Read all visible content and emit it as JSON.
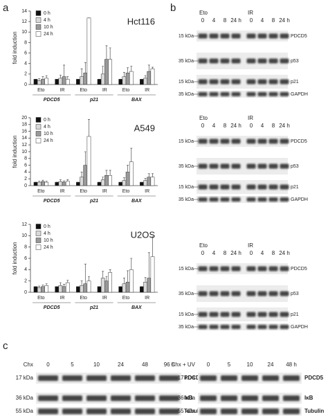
{
  "panel_labels": [
    "a",
    "b",
    "c"
  ],
  "chart_data": [
    {
      "type": "bar",
      "title": "Hct116",
      "y_label": "fold induction",
      "categories": [
        "Eto",
        "IR",
        "Eto",
        "IR",
        "Eto",
        "IR"
      ],
      "groups": [
        "PDCD5",
        "p21",
        "BAX"
      ],
      "ylim": [
        0,
        14
      ],
      "yticks": [
        0,
        2,
        4,
        6,
        8,
        10,
        12,
        14
      ],
      "grid": false,
      "legend": "top-left",
      "series": [
        {
          "name": "0 h",
          "color": "#111111",
          "values": [
            1,
            1,
            1,
            1,
            1,
            1
          ],
          "errors": [
            0,
            0,
            0,
            0,
            0,
            0
          ]
        },
        {
          "name": "4 h",
          "color": "#d9d9d9",
          "values": [
            0.7,
            1.2,
            1.5,
            2,
            1.5,
            1.2
          ],
          "errors": [
            0.4,
            0.6,
            1.5,
            1.5,
            0.8,
            0.5
          ]
        },
        {
          "name": "10 h",
          "color": "#999999",
          "values": [
            1,
            1.5,
            2.2,
            4.8,
            2.2,
            2.5
          ],
          "errors": [
            0.5,
            2.2,
            2,
            2.6,
            1,
            1.2
          ]
        },
        {
          "name": "24 h",
          "color": "#ffffff",
          "values": [
            1.2,
            1,
            12.7,
            4.8,
            2.5,
            3
          ],
          "errors": [
            0.5,
            0.5,
            0,
            2.2,
            1,
            0.3
          ]
        }
      ]
    },
    {
      "type": "bar",
      "title": "A549",
      "y_label": "fold induction",
      "categories": [
        "Eto",
        "IR",
        "Eto",
        "IR",
        "Eto",
        "IR"
      ],
      "groups": [
        "PDCD5",
        "p21",
        "BAX"
      ],
      "ylim": [
        0,
        20
      ],
      "yticks": [
        0,
        2,
        4,
        6,
        8,
        10,
        12,
        14,
        16,
        18,
        20
      ],
      "grid": false,
      "legend": "top-left",
      "series": [
        {
          "name": "0 h",
          "color": "#111111",
          "values": [
            1,
            1,
            1,
            1,
            1,
            1
          ],
          "errors": [
            0,
            0,
            0,
            0,
            0,
            0
          ]
        },
        {
          "name": "4 h",
          "color": "#d9d9d9",
          "values": [
            1,
            1.2,
            2.5,
            1.7,
            1.5,
            1.5
          ],
          "errors": [
            0.3,
            0.5,
            1.5,
            0.8,
            0.8,
            0.6
          ]
        },
        {
          "name": "10 h",
          "color": "#999999",
          "values": [
            1.2,
            1,
            6,
            3,
            4,
            2.5
          ],
          "errors": [
            0.4,
            0.4,
            4,
            1.5,
            2,
            1
          ]
        },
        {
          "name": "24 h",
          "color": "#ffffff",
          "values": [
            1,
            1.3,
            14.5,
            3,
            7,
            2.5
          ],
          "errors": [
            0.3,
            0.5,
            5,
            1.5,
            4,
            1
          ]
        }
      ]
    },
    {
      "type": "bar",
      "title": "U2OS",
      "y_label": "fold induction",
      "categories": [
        "Eto",
        "IR",
        "Eto",
        "IR",
        "Eto",
        "IR"
      ],
      "groups": [
        "PDCD5",
        "p21",
        "BAX"
      ],
      "ylim": [
        0,
        12
      ],
      "yticks": [
        0,
        2,
        4,
        6,
        8,
        10,
        12
      ],
      "grid": false,
      "legend": "top-left",
      "series": [
        {
          "name": "0 h",
          "color": "#111111",
          "values": [
            1,
            1,
            1,
            1,
            1,
            1
          ],
          "errors": [
            0,
            0,
            0,
            0,
            0,
            0
          ]
        },
        {
          "name": "4 h",
          "color": "#d9d9d9",
          "values": [
            0.8,
            1.2,
            1.2,
            2.5,
            1.5,
            1.8
          ],
          "errors": [
            0.3,
            0.5,
            0.8,
            1.2,
            1,
            0.8
          ]
        },
        {
          "name": "10 h",
          "color": "#999999",
          "values": [
            1,
            1,
            1.5,
            2,
            1.8,
            2.5
          ],
          "errors": [
            0.3,
            0.4,
            3.5,
            0.8,
            2,
            4.5
          ]
        },
        {
          "name": "24 h",
          "color": "#ffffff",
          "values": [
            1.2,
            1.7,
            2,
            3.5,
            4,
            6.3
          ],
          "errors": [
            0.3,
            0.4,
            0.8,
            0.5,
            2,
            3.5
          ]
        }
      ]
    }
  ],
  "blots_b": [
    {
      "treatments": [
        "Eto",
        "IR"
      ],
      "times": [
        "0",
        "4",
        "8",
        "24 h"
      ],
      "rows": [
        {
          "marker": "15 kDa",
          "protein": "PDCD5"
        },
        {
          "marker": "35 kDa",
          "protein": "p53"
        },
        {
          "marker": "15 kDa",
          "protein": "p21"
        },
        {
          "marker": "35 kDa",
          "protein": "GAPDH"
        }
      ]
    },
    {
      "treatments": [
        "Eto",
        "IR"
      ],
      "times": [
        "0",
        "4",
        "8",
        "24 h"
      ],
      "rows": [
        {
          "marker": "15 kDa",
          "protein": "PDCD5"
        },
        {
          "marker": "35 kDa",
          "protein": "p53"
        },
        {
          "marker": "15 kDa",
          "protein": "p21"
        },
        {
          "marker": "35 kDa",
          "protein": "GAPDH"
        }
      ]
    },
    {
      "treatments": [
        "Eto",
        "IR"
      ],
      "times": [
        "0",
        "4",
        "8",
        "24 h"
      ],
      "rows": [
        {
          "marker": "15 kDa",
          "protein": "PDCD5"
        },
        {
          "marker": "35 kDa",
          "protein": "p53"
        },
        {
          "marker": "15 kDa",
          "protein": "p21"
        },
        {
          "marker": "35 kDa",
          "protein": "GAPDH"
        }
      ]
    }
  ],
  "blots_c": [
    {
      "treatment": "Chx",
      "times": [
        "0",
        "5",
        "10",
        "24",
        "48",
        "96 h"
      ],
      "rows": [
        {
          "marker": "17 kDa",
          "protein": "PDCD5"
        },
        {
          "marker": "36 kDa",
          "protein": "IκB"
        },
        {
          "marker": "55 kDa",
          "protein": "Tubulin"
        }
      ]
    },
    {
      "treatment": "Chx + UV",
      "times": [
        "0",
        "5",
        "10",
        "24",
        "48 h"
      ],
      "rows": [
        {
          "marker": "17 kDa",
          "protein": "PDCD5"
        },
        {
          "marker": "36 kDa",
          "protein": "IκB"
        },
        {
          "marker": "55 kDa",
          "protein": "Tubulin"
        }
      ]
    }
  ]
}
